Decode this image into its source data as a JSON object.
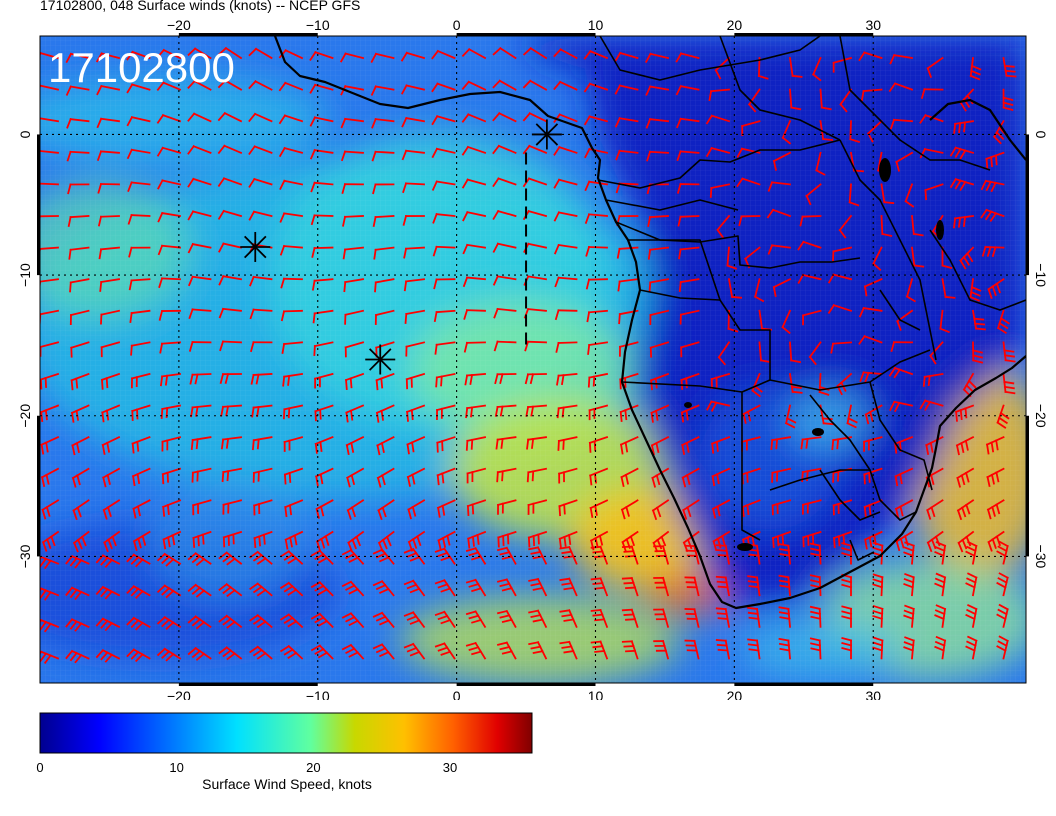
{
  "title": "17102800, 048 Surface winds (knots) -- NCEP GFS",
  "stamp": "17102800",
  "colorbar": {
    "label": "Surface Wind Speed, knots",
    "ticks": [
      "0",
      "10",
      "20",
      "30"
    ],
    "tick_values": [
      0,
      10,
      20,
      30
    ],
    "range": [
      0,
      36
    ],
    "colors": [
      "#00008f",
      "#0000ff",
      "#0080ff",
      "#00e0ff",
      "#60ff9f",
      "#c8d800",
      "#ffc000",
      "#ff6000",
      "#e00000",
      "#800000"
    ]
  },
  "map": {
    "lon_range": [
      -30,
      41
    ],
    "lat_range": [
      -39,
      7
    ],
    "lon_ticks": [
      -20,
      -10,
      0,
      10,
      20,
      30
    ],
    "lat_ticks": [
      0,
      -10,
      -20,
      -30
    ],
    "lon_tick_labels": [
      "−20",
      "−10",
      "0",
      "10",
      "20",
      "30"
    ],
    "lat_tick_labels": [
      "0",
      "−10",
      "−20",
      "−30"
    ],
    "coastline_color": "#000000",
    "barb_color": "#ff0000",
    "grid": true,
    "markers": [
      {
        "name": "star",
        "lon": 6.5,
        "lat": 0.0
      },
      {
        "name": "star",
        "lon": -14.5,
        "lat": -8.0
      },
      {
        "name": "star",
        "lon": -5.5,
        "lat": -16.0
      }
    ],
    "dashed_line": {
      "lon": 5.0,
      "lat_from": 0.0,
      "lat_to": -15.0
    }
  }
}
